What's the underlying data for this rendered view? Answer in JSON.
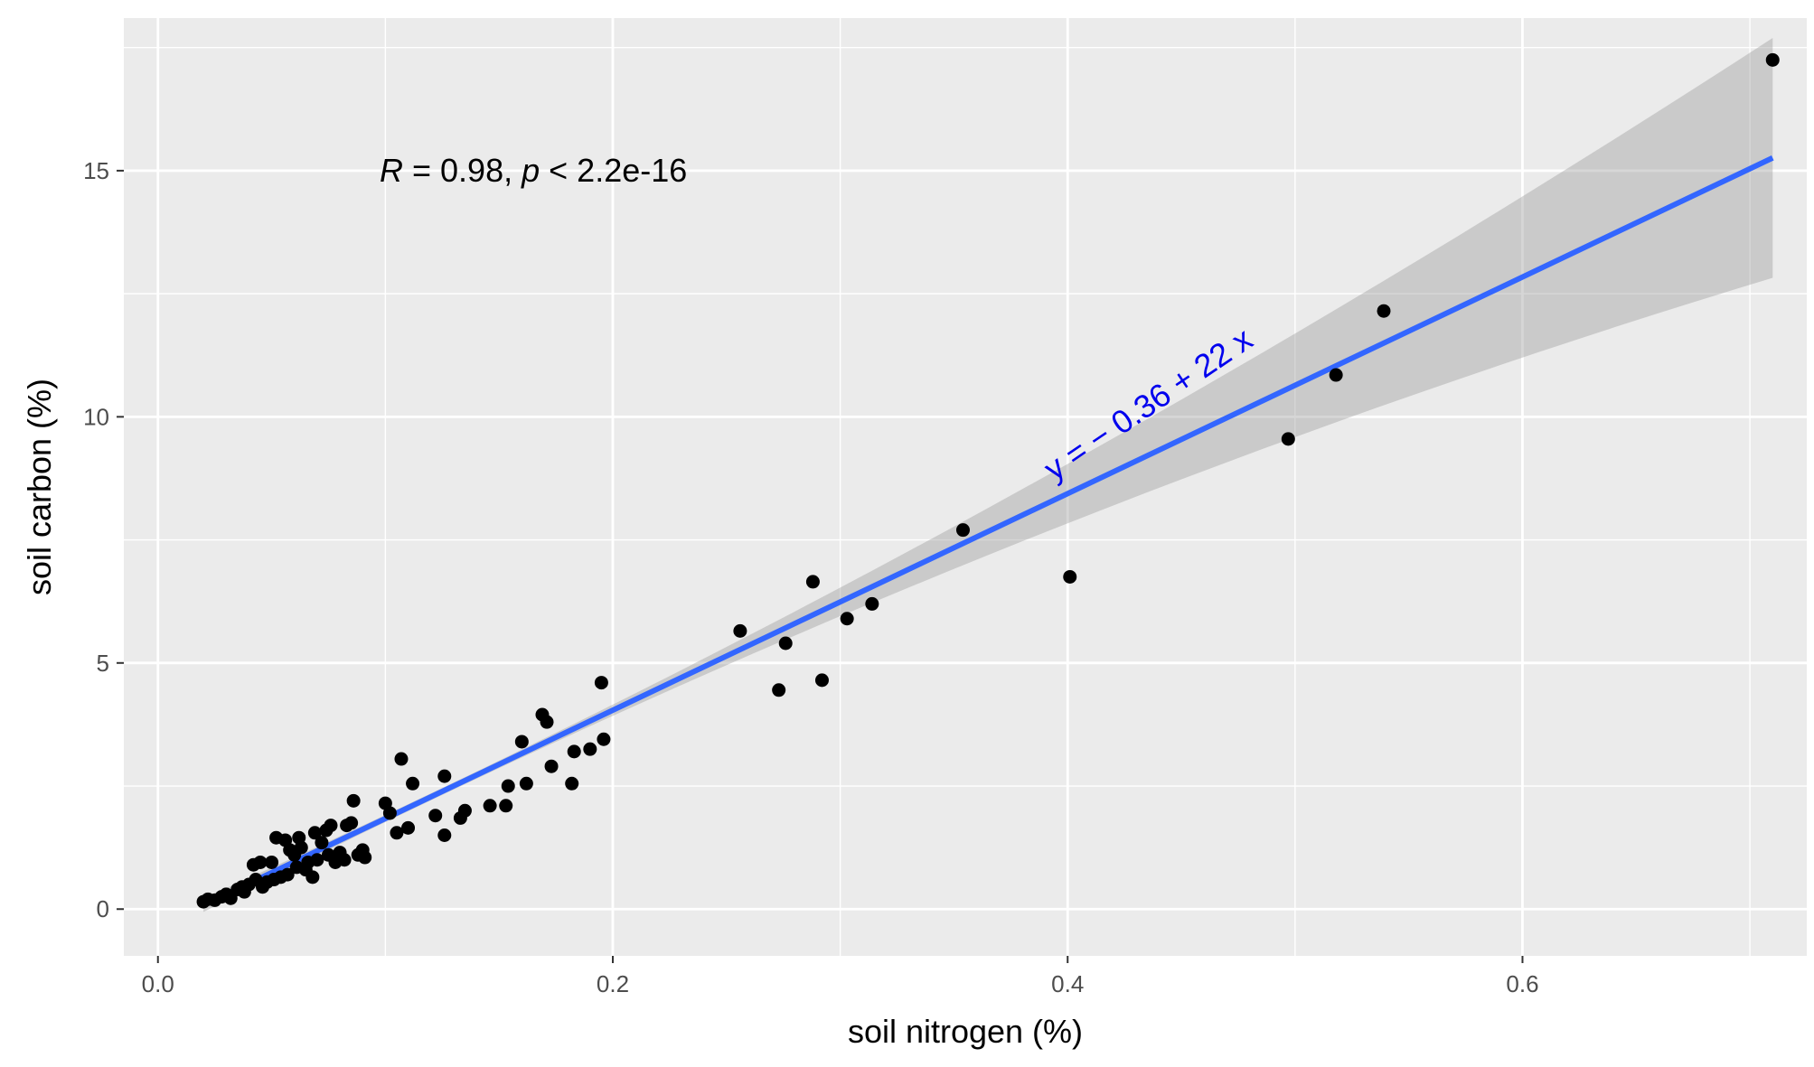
{
  "chart_data": {
    "type": "scatter",
    "xlabel": "soil nitrogen (%)",
    "ylabel": "soil carbon (%)",
    "xlim": [
      -0.015,
      0.725
    ],
    "ylim": [
      -0.95,
      18.1
    ],
    "x_ticks": [
      0.0,
      0.2,
      0.4,
      0.6
    ],
    "x_tick_labels": [
      "0.0",
      "0.2",
      "0.4",
      "0.6"
    ],
    "y_ticks": [
      0,
      5,
      10,
      15
    ],
    "y_tick_labels": [
      "0",
      "5",
      "10",
      "15"
    ],
    "grid": true,
    "legend": "none",
    "annotations": {
      "stat_R": "R",
      "stat_eq_r": " = 0.98, ",
      "stat_p": "p",
      "stat_rest": " < 2.2e-16",
      "equation": "y = − 0.36 + 22 x"
    },
    "regression": {
      "intercept": -0.36,
      "slope": 22.0,
      "x_range": [
        0.02,
        0.71
      ]
    },
    "points": [
      {
        "x": 0.02,
        "y": 0.15
      },
      {
        "x": 0.022,
        "y": 0.2
      },
      {
        "x": 0.025,
        "y": 0.18
      },
      {
        "x": 0.028,
        "y": 0.25
      },
      {
        "x": 0.03,
        "y": 0.3
      },
      {
        "x": 0.032,
        "y": 0.22
      },
      {
        "x": 0.035,
        "y": 0.4
      },
      {
        "x": 0.037,
        "y": 0.45
      },
      {
        "x": 0.038,
        "y": 0.35
      },
      {
        "x": 0.04,
        "y": 0.5
      },
      {
        "x": 0.042,
        "y": 0.9
      },
      {
        "x": 0.043,
        "y": 0.6
      },
      {
        "x": 0.045,
        "y": 0.95
      },
      {
        "x": 0.046,
        "y": 0.45
      },
      {
        "x": 0.048,
        "y": 0.55
      },
      {
        "x": 0.05,
        "y": 0.95
      },
      {
        "x": 0.051,
        "y": 0.6
      },
      {
        "x": 0.052,
        "y": 1.45
      },
      {
        "x": 0.054,
        "y": 0.65
      },
      {
        "x": 0.056,
        "y": 1.4
      },
      {
        "x": 0.057,
        "y": 0.7
      },
      {
        "x": 0.058,
        "y": 1.2
      },
      {
        "x": 0.06,
        "y": 1.1
      },
      {
        "x": 0.061,
        "y": 0.85
      },
      {
        "x": 0.062,
        "y": 1.45
      },
      {
        "x": 0.063,
        "y": 1.25
      },
      {
        "x": 0.065,
        "y": 0.8
      },
      {
        "x": 0.066,
        "y": 0.95
      },
      {
        "x": 0.068,
        "y": 0.65
      },
      {
        "x": 0.069,
        "y": 1.55
      },
      {
        "x": 0.07,
        "y": 1.0
      },
      {
        "x": 0.072,
        "y": 1.35
      },
      {
        "x": 0.074,
        "y": 1.6
      },
      {
        "x": 0.075,
        "y": 1.1
      },
      {
        "x": 0.076,
        "y": 1.7
      },
      {
        "x": 0.078,
        "y": 0.95
      },
      {
        "x": 0.08,
        "y": 1.15
      },
      {
        "x": 0.082,
        "y": 1.0
      },
      {
        "x": 0.083,
        "y": 1.7
      },
      {
        "x": 0.085,
        "y": 1.75
      },
      {
        "x": 0.086,
        "y": 2.2
      },
      {
        "x": 0.088,
        "y": 1.1
      },
      {
        "x": 0.09,
        "y": 1.2
      },
      {
        "x": 0.091,
        "y": 1.05
      },
      {
        "x": 0.1,
        "y": 2.15
      },
      {
        "x": 0.102,
        "y": 1.95
      },
      {
        "x": 0.105,
        "y": 1.55
      },
      {
        "x": 0.107,
        "y": 3.05
      },
      {
        "x": 0.11,
        "y": 1.65
      },
      {
        "x": 0.112,
        "y": 2.55
      },
      {
        "x": 0.122,
        "y": 1.9
      },
      {
        "x": 0.126,
        "y": 2.7
      },
      {
        "x": 0.126,
        "y": 1.5
      },
      {
        "x": 0.133,
        "y": 1.85
      },
      {
        "x": 0.135,
        "y": 2.0
      },
      {
        "x": 0.146,
        "y": 2.1
      },
      {
        "x": 0.153,
        "y": 2.1
      },
      {
        "x": 0.154,
        "y": 2.5
      },
      {
        "x": 0.16,
        "y": 3.4
      },
      {
        "x": 0.162,
        "y": 2.55
      },
      {
        "x": 0.169,
        "y": 3.95
      },
      {
        "x": 0.171,
        "y": 3.8
      },
      {
        "x": 0.173,
        "y": 2.9
      },
      {
        "x": 0.182,
        "y": 2.55
      },
      {
        "x": 0.183,
        "y": 3.2
      },
      {
        "x": 0.19,
        "y": 3.25
      },
      {
        "x": 0.195,
        "y": 4.6
      },
      {
        "x": 0.196,
        "y": 3.45
      },
      {
        "x": 0.256,
        "y": 5.65
      },
      {
        "x": 0.273,
        "y": 4.45
      },
      {
        "x": 0.276,
        "y": 5.4
      },
      {
        "x": 0.288,
        "y": 6.65
      },
      {
        "x": 0.292,
        "y": 4.65
      },
      {
        "x": 0.303,
        "y": 5.9
      },
      {
        "x": 0.314,
        "y": 6.2
      },
      {
        "x": 0.354,
        "y": 7.7
      },
      {
        "x": 0.401,
        "y": 6.75
      },
      {
        "x": 0.497,
        "y": 9.55
      },
      {
        "x": 0.518,
        "y": 10.85
      },
      {
        "x": 0.539,
        "y": 12.15
      },
      {
        "x": 0.71,
        "y": 17.25
      }
    ]
  }
}
